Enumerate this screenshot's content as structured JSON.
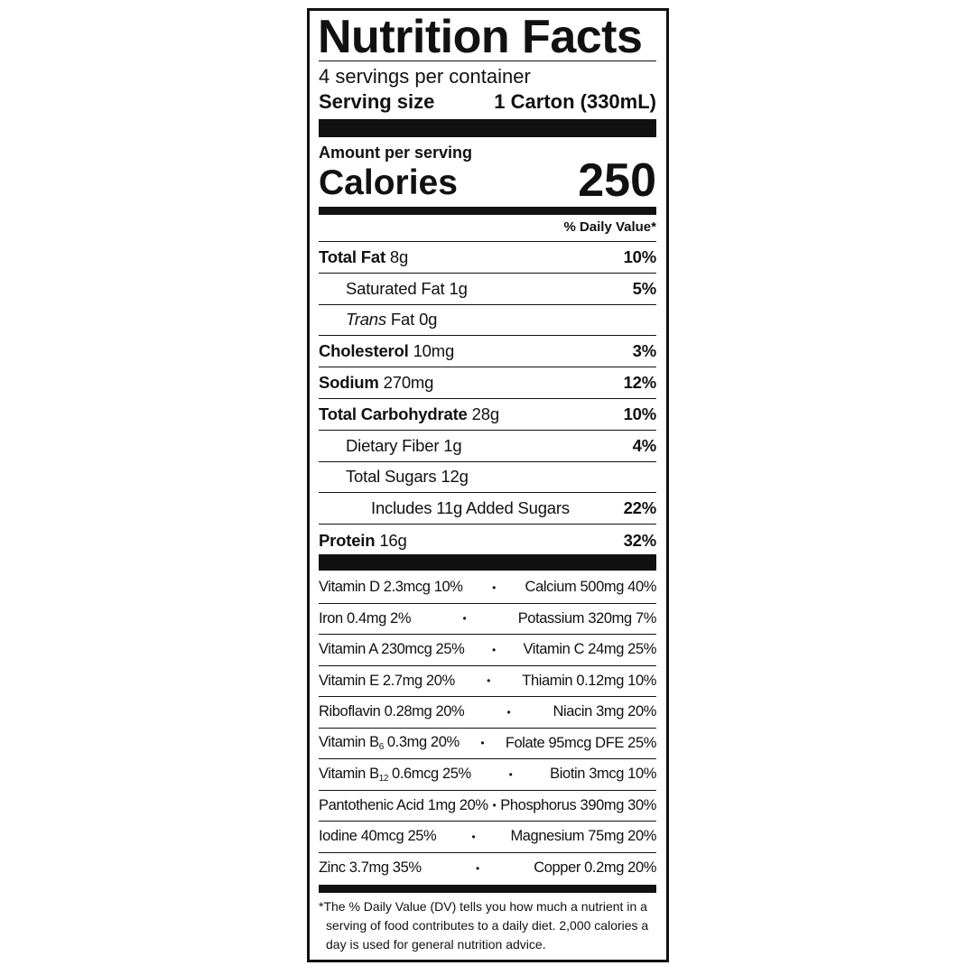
{
  "title": "Nutrition Facts",
  "servings": "4 servings per container",
  "serving_size": {
    "label": "Serving size",
    "value": "1 Carton (330mL)"
  },
  "amount_per_serving": "Amount per serving",
  "calories": {
    "label": "Calories",
    "value": "250"
  },
  "daily_value_header": "% Daily Value*",
  "nutrients": [
    {
      "name": "Total Fat",
      "amount": "8g",
      "dv": "10%"
    },
    {
      "name": "Saturated Fat",
      "amount": "1g",
      "dv": "5%"
    },
    {
      "name_italic": "Trans",
      "name": "Fat",
      "amount": "0g"
    },
    {
      "name": "Cholesterol",
      "amount": "10mg",
      "dv": "3%"
    },
    {
      "name": "Sodium",
      "amount": "270mg",
      "dv": "12%"
    },
    {
      "name": "Total Carbohydrate",
      "amount": "28g",
      "dv": "10%"
    },
    {
      "name": "Dietary Fiber",
      "amount": "1g",
      "dv": "4%"
    },
    {
      "name": "Total Sugars",
      "amount": "12g"
    },
    {
      "name": "Includes 11g Added Sugars",
      "dv": "22%"
    },
    {
      "name": "Protein",
      "amount": "16g",
      "dv": "32%"
    }
  ],
  "separator": "•",
  "vitamins": [
    {
      "left": "Vitamin D 2.3mcg 10%",
      "right": "Calcium 500mg 40%"
    },
    {
      "left": "Iron 0.4mg 2%",
      "right": "Potassium 320mg 7%"
    },
    {
      "left": "Vitamin A 230mcg 25%",
      "right": "Vitamin C 24mg 25%"
    },
    {
      "left": "Vitamin E 2.7mg 20%",
      "right": "Thiamin 0.12mg 10%"
    },
    {
      "left": "Riboflavin 0.28mg 20%",
      "right": "Niacin 3mg 20%"
    },
    {
      "left": {
        "name": "Vitamin B",
        "sub": "6",
        "amount": "0.3mg 20%"
      },
      "right": "Folate 95mcg DFE 25%"
    },
    {
      "left": {
        "name": "Vitamin B",
        "sub": "12",
        "amount": "0.6mcg 25%"
      },
      "right": "Biotin 3mcg 10%"
    },
    {
      "left": "Pantothenic Acid 1mg 20%",
      "right": "Phosphorus 390mg 30%"
    },
    {
      "left": "Iodine 40mcg 25%",
      "right": "Magnesium 75mg 20%"
    },
    {
      "left": "Zinc 3.7mg 35%",
      "right": "Copper 0.2mg 20%"
    }
  ],
  "footnote": "*The % Daily Value (DV) tells you how much a nutrient in a serving of food contributes to a daily diet. 2,000 calories a day is used for general nutrition advice."
}
